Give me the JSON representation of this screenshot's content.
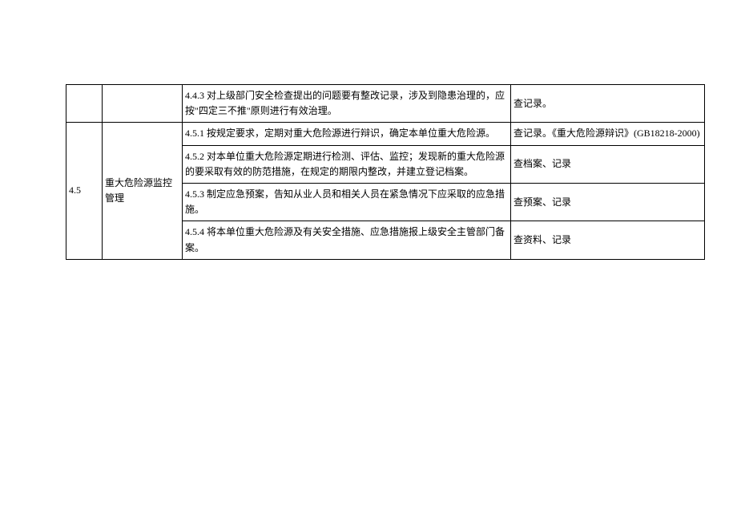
{
  "table": {
    "row1": {
      "col1": "",
      "col2": "",
      "content": "4.4.3 对上级部门安全检查提出的问题要有整改记录，涉及到隐患治理的，应按\"四定三不推\"原则进行有效治理。",
      "note": "查记录。"
    },
    "section45": {
      "num": "4.5",
      "name": "重大危险源监控管理",
      "rows": [
        {
          "content": "4.5.1 按规定要求，定期对重大危险源进行辩识，确定本单位重大危险源。",
          "note": "查记录。《重大危险源辩识》(GB18218-2000)"
        },
        {
          "content": "4.5.2 对本单位重大危险源定期进行检测、评估、监控；发现新的重大危险源的要采取有效的防范措施，在规定的期限内整改，并建立登记档案。",
          "note": "查档案、记录"
        },
        {
          "content": "4.5.3 制定应急预案，告知从业人员和相关人员在紧急情况下应采取的应急措施。",
          "note": "查预案、记录"
        },
        {
          "content": "4.5.4 将本单位重大危险源及有关安全措施、应急措施报上级安全主管部门备案。",
          "note": "查资料、记录"
        }
      ]
    }
  }
}
